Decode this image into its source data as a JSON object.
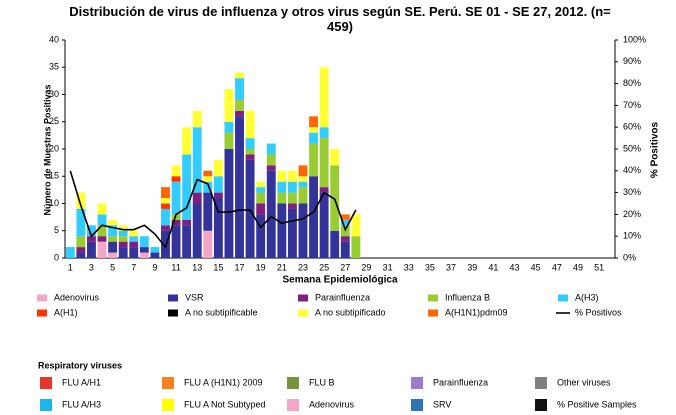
{
  "chart_data": {
    "type": "bar",
    "stacked": true,
    "title": "Distribución de virus de influenza y otros virus según SE. Perú. SE 01 - SE 27, 2012. (n= 459)",
    "xlabel": "Semana Epidemiológica",
    "ylabel": "Número de Muestras Positivas",
    "y2label": "% Positivos",
    "categories": [
      1,
      null,
      3,
      null,
      5,
      null,
      7,
      null,
      9,
      null,
      11,
      null,
      13,
      null,
      15,
      null,
      17,
      null,
      19,
      null,
      21,
      null,
      23,
      null,
      25,
      null,
      27,
      null,
      29,
      null,
      31,
      null,
      33,
      null,
      35,
      null,
      37,
      null,
      39,
      null,
      41,
      null,
      43,
      null,
      45,
      null,
      47,
      null,
      49,
      null,
      51,
      null
    ],
    "ylim": [
      0,
      40
    ],
    "yticks": [
      0,
      5,
      10,
      15,
      20,
      25,
      30,
      35,
      40
    ],
    "y2lim": [
      0,
      100
    ],
    "y2ticks": [
      {
        "value": 0,
        "label": "0%"
      },
      {
        "value": 10,
        "label": "10%"
      },
      {
        "value": 20,
        "label": "20%"
      },
      {
        "value": 30,
        "label": "30%"
      },
      {
        "value": 40,
        "label": "40%"
      },
      {
        "value": 50,
        "label": "50%"
      },
      {
        "value": 60,
        "label": "60%"
      },
      {
        "value": 70,
        "label": "70%"
      },
      {
        "value": 80,
        "label": "80%"
      },
      {
        "value": 90,
        "label": "90%"
      },
      {
        "value": 100,
        "label": "100%"
      }
    ],
    "series": [
      {
        "name": "Adenovirus",
        "color": "#f4a6c8",
        "values": [
          0,
          0,
          0,
          3,
          1,
          0,
          0,
          1,
          0,
          0,
          0,
          0,
          0,
          5,
          0,
          0,
          0,
          0,
          0,
          0,
          0,
          0,
          0,
          0,
          0,
          0,
          0,
          0,
          null,
          null,
          null,
          null,
          null,
          null,
          null,
          null,
          null,
          null,
          null,
          null,
          null,
          null,
          null,
          null,
          null,
          null,
          null,
          null,
          null,
          null,
          null,
          null
        ]
      },
      {
        "name": "VSR",
        "color": "#33339a",
        "values": [
          0,
          1,
          3,
          0,
          2,
          2,
          2,
          1,
          1,
          5,
          6,
          6,
          10,
          7,
          11,
          20,
          26,
          18,
          8,
          16,
          10,
          9,
          10,
          15,
          12,
          5,
          3,
          0,
          null,
          null,
          null,
          null,
          null,
          null,
          null,
          null,
          null,
          null,
          null,
          null,
          null,
          null,
          null,
          null,
          null,
          null,
          null,
          null,
          null,
          null,
          null,
          null
        ]
      },
      {
        "name": "Parainfluenza",
        "color": "#7f1f7f",
        "values": [
          0,
          1,
          1,
          1,
          0,
          1,
          1,
          0,
          0,
          1,
          1,
          1,
          2,
          0,
          1,
          0,
          1,
          1,
          2,
          1,
          0,
          1,
          0,
          0,
          1,
          0,
          1,
          0,
          null,
          null,
          null,
          null,
          null,
          null,
          null,
          null,
          null,
          null,
          null,
          null,
          null,
          null,
          null,
          null,
          null,
          null,
          null,
          null,
          null,
          null,
          null,
          null
        ]
      },
      {
        "name": "Influenza  B",
        "color": "#99cc33",
        "values": [
          0,
          2,
          0,
          2,
          1,
          1,
          0,
          0,
          0,
          0,
          1,
          0,
          0,
          0,
          0,
          3,
          2,
          1,
          2,
          2,
          2,
          2,
          3,
          6,
          9,
          12,
          2,
          4,
          null,
          null,
          null,
          null,
          null,
          null,
          null,
          null,
          null,
          null,
          null,
          null,
          null,
          null,
          null,
          null,
          null,
          null,
          null,
          null,
          null,
          null,
          null,
          null
        ]
      },
      {
        "name": "A(H3)",
        "color": "#33ccff",
        "values": [
          2,
          5,
          2,
          2,
          2,
          1,
          1,
          2,
          1,
          3,
          6,
          12,
          12,
          2,
          3,
          2,
          4,
          2,
          1,
          2,
          2,
          2,
          1,
          2,
          2,
          0,
          1,
          0,
          null,
          null,
          null,
          null,
          null,
          null,
          null,
          null,
          null,
          null,
          null,
          null,
          null,
          null,
          null,
          null,
          null,
          null,
          null,
          null,
          null,
          null,
          null,
          null
        ]
      },
      {
        "name": "A(H1)",
        "color": "#ff3300",
        "values": [
          0,
          0,
          0,
          0,
          0,
          0,
          0,
          0,
          0,
          1,
          1,
          0,
          0,
          0,
          0,
          0,
          0,
          0,
          0,
          0,
          0,
          0,
          0,
          0,
          0,
          0,
          0,
          0,
          null,
          null,
          null,
          null,
          null,
          null,
          null,
          null,
          null,
          null,
          null,
          null,
          null,
          null,
          null,
          null,
          null,
          null,
          null,
          null,
          null,
          null,
          null,
          null
        ]
      },
      {
        "name": "A no subtipificable",
        "color": "#000000",
        "values": [
          0,
          0,
          0,
          0,
          0,
          0,
          0,
          0,
          0,
          0,
          0,
          0,
          0,
          0,
          0,
          0,
          0,
          0,
          0,
          0,
          0,
          0,
          0,
          0,
          0,
          0,
          0,
          0,
          null,
          null,
          null,
          null,
          null,
          null,
          null,
          null,
          null,
          null,
          null,
          null,
          null,
          null,
          null,
          null,
          null,
          null,
          null,
          null,
          null,
          null,
          null,
          null
        ]
      },
      {
        "name": "A no subtipificado",
        "color": "#ffff33",
        "values": [
          0,
          3,
          0,
          2,
          1,
          1,
          1,
          0,
          0,
          1,
          2,
          5,
          3,
          1,
          3,
          6,
          1,
          5,
          1,
          0,
          2,
          2,
          1,
          1,
          11,
          3,
          0,
          4,
          null,
          null,
          null,
          null,
          null,
          null,
          null,
          null,
          null,
          null,
          null,
          null,
          null,
          null,
          null,
          null,
          null,
          null,
          null,
          null,
          null,
          null,
          null,
          null
        ]
      },
      {
        "name": "A(H1N1)pdm09",
        "color": "#ff6600",
        "values": [
          0,
          0,
          0,
          0,
          0,
          0,
          0,
          0,
          0,
          2,
          0,
          0,
          0,
          1,
          0,
          0,
          0,
          0,
          0,
          0,
          0,
          0,
          2,
          2,
          0,
          0,
          1,
          0,
          null,
          null,
          null,
          null,
          null,
          null,
          null,
          null,
          null,
          null,
          null,
          null,
          null,
          null,
          null,
          null,
          null,
          null,
          null,
          null,
          null,
          null,
          null,
          null
        ]
      },
      {
        "name": "% Positivos",
        "color": "#000000",
        "type": "line",
        "axis": "y2",
        "values": [
          40,
          24,
          10,
          15,
          14,
          13,
          13,
          15,
          11,
          5,
          20,
          23,
          36,
          34,
          21,
          21,
          22,
          22,
          14,
          19,
          16,
          17,
          18,
          21,
          30,
          27,
          13,
          22,
          null,
          null,
          null,
          null,
          null,
          null,
          null,
          null,
          null,
          null,
          null,
          null,
          null,
          null,
          null,
          null,
          null,
          null,
          null,
          null,
          null,
          null,
          null,
          null
        ]
      }
    ]
  },
  "respiratory_legend": {
    "title": "Respiratory viruses",
    "items": [
      {
        "label": "FLU A/H1",
        "color": "#e8352a"
      },
      {
        "label": "FLU A (H1N1) 2009",
        "color": "#f5821f"
      },
      {
        "label": "FLU B",
        "color": "#77933c"
      },
      {
        "label": "Parainfluenza",
        "color": "#9c7ccc"
      },
      {
        "label": "Other viruses",
        "color": "#808080"
      },
      {
        "label": "FLU A/H3",
        "color": "#1bb7ea"
      },
      {
        "label": "FLU A Not Subtyped",
        "color": "#ffff00"
      },
      {
        "label": "Adenovirus",
        "color": "#f4a6c8"
      },
      {
        "label": "SRV",
        "color": "#2e75b6"
      },
      {
        "label": "% Positive Samples",
        "color": "#111111"
      }
    ]
  }
}
